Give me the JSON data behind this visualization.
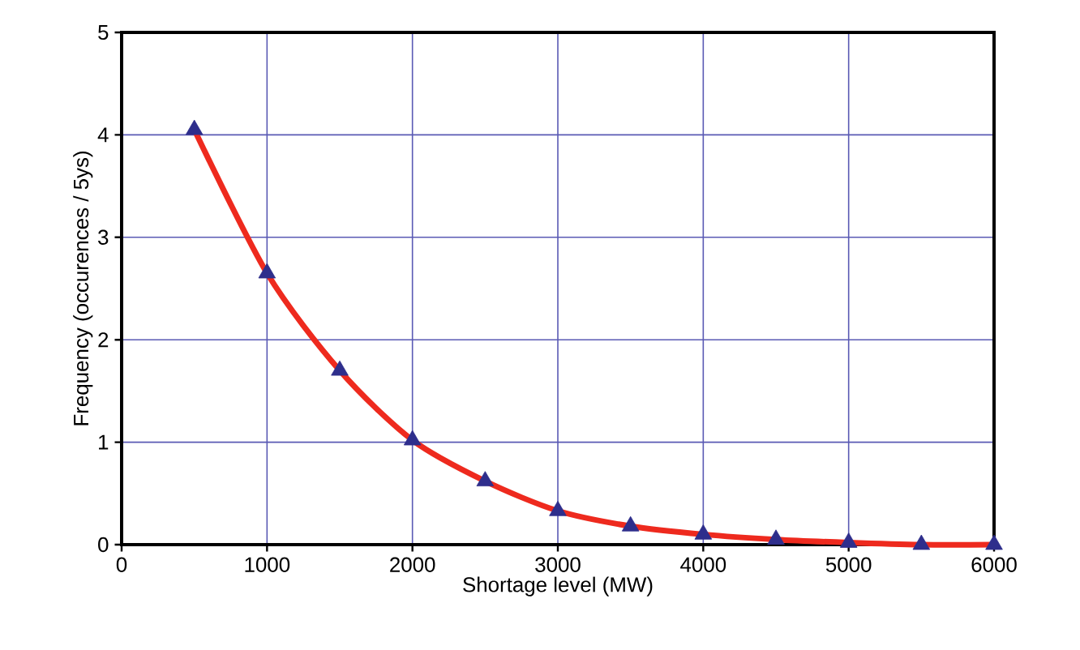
{
  "chart_data": {
    "type": "line",
    "xlabel": "Shortage level (MW)",
    "ylabel": "Frequency (occurences / 5ys)",
    "xlim": [
      0,
      6000
    ],
    "xticks": [
      0,
      1000,
      2000,
      3000,
      4000,
      5000,
      6000
    ],
    "ylim": [
      0,
      5
    ],
    "yticks": [
      0,
      1,
      2,
      3,
      4,
      5
    ],
    "grid": true,
    "series": [
      {
        "color": "#ee2a1e",
        "marker": "none",
        "x": [
          500,
          1000,
          1500,
          2000,
          2500,
          3000,
          3500,
          4000,
          4500,
          5000,
          5500,
          6000
        ],
        "values": [
          4.05,
          2.65,
          1.7,
          1.02,
          0.62,
          0.33,
          0.18,
          0.1,
          0.05,
          0.02,
          0.0,
          0.0
        ]
      },
      {
        "type": "scatter",
        "color": "#2e2e8c",
        "marker": "triangle",
        "x": [
          500,
          1000,
          1500,
          2000,
          2500,
          3000,
          3500,
          4000,
          4500,
          5000,
          5500,
          6000
        ],
        "values": [
          4.05,
          2.65,
          1.7,
          1.02,
          0.62,
          0.33,
          0.18,
          0.1,
          0.05,
          0.02,
          0.0,
          0.0
        ]
      }
    ]
  }
}
